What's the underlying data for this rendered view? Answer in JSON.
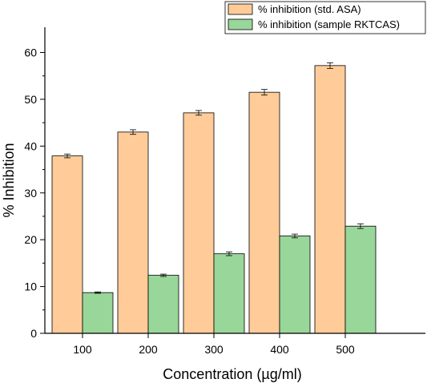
{
  "chart_data": {
    "type": "bar",
    "xlabel": "Concentration (µg/ml)",
    "ylabel": "% Inhibition",
    "categories": [
      "100",
      "200",
      "300",
      "400",
      "500"
    ],
    "ylim": [
      0,
      65
    ],
    "yticks": [
      0,
      10,
      20,
      30,
      40,
      50,
      60
    ],
    "grid": false,
    "legend_position": "top-right",
    "series": [
      {
        "name": "% inhibition (std. ASA)",
        "color": "#FFCC99",
        "values": [
          37.9,
          43.0,
          47.1,
          51.5,
          57.2
        ],
        "errors": [
          0.4,
          0.5,
          0.5,
          0.6,
          0.6
        ]
      },
      {
        "name": "% inhibition (sample RKTCAS)",
        "color": "#99D699",
        "values": [
          8.7,
          12.4,
          17.0,
          20.8,
          22.9
        ],
        "errors": [
          0.15,
          0.25,
          0.4,
          0.4,
          0.5
        ]
      }
    ]
  }
}
